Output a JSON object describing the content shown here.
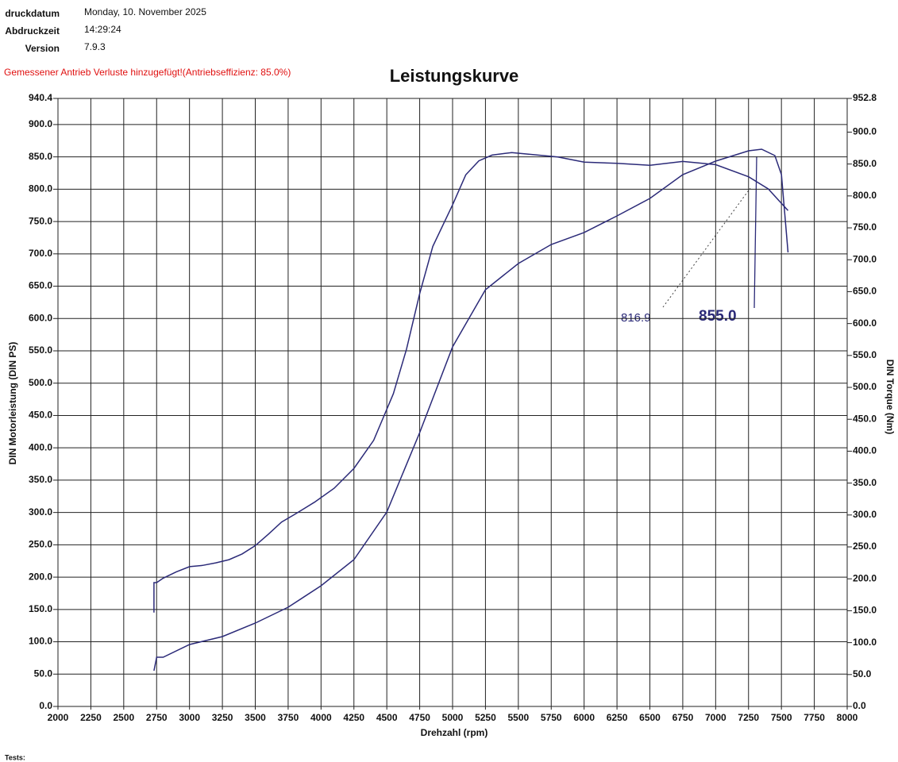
{
  "header": {
    "rows": [
      {
        "label": "druckdatum",
        "value": "Monday, 10. November 2025"
      },
      {
        "label": "Abdruckzeit",
        "value": "14:29:24"
      },
      {
        "label": "Version",
        "value": "7.9.3"
      }
    ]
  },
  "chart_data": {
    "type": "line",
    "title": "Leistungskurve",
    "note": "Gemessener Antrieb Verluste hinzugefügt!(Antriebseffizienz: 85.0%)",
    "x_label": "Drehzahl (rpm)",
    "y_label": "DIN Motorleistung (DIN PS)",
    "y2_label": "DIN Torque (Nm)",
    "xlim": [
      2000,
      8000
    ],
    "xticks": [
      2000,
      2250,
      2500,
      2750,
      3000,
      3250,
      3500,
      3750,
      4000,
      4250,
      4500,
      4750,
      5000,
      5250,
      5500,
      5750,
      6000,
      6250,
      6500,
      6750,
      7000,
      7250,
      7500,
      7750,
      8000
    ],
    "ylim": [
      0,
      940.4
    ],
    "yticks": [
      {
        "value": 0,
        "label": "0.0"
      },
      {
        "value": 50,
        "label": "50.0"
      },
      {
        "value": 100,
        "label": "100.0"
      },
      {
        "value": 150,
        "label": "150.0"
      },
      {
        "value": 200,
        "label": "200.0"
      },
      {
        "value": 250,
        "label": "250.0"
      },
      {
        "value": 300,
        "label": "300.0"
      },
      {
        "value": 350,
        "label": "350.0"
      },
      {
        "value": 400,
        "label": "400.0"
      },
      {
        "value": 450,
        "label": "450.0"
      },
      {
        "value": 500,
        "label": "500.0"
      },
      {
        "value": 550,
        "label": "550.0"
      },
      {
        "value": 600,
        "label": "600.0"
      },
      {
        "value": 650,
        "label": "650.0"
      },
      {
        "value": 700,
        "label": "700.0"
      },
      {
        "value": 750,
        "label": "750.0"
      },
      {
        "value": 800,
        "label": "800.0"
      },
      {
        "value": 850,
        "label": "850.0"
      },
      {
        "value": 900,
        "label": "900.0"
      },
      940.4
    ],
    "y2lim": [
      0,
      952.8
    ],
    "y2ticks": [
      {
        "value": 0,
        "label": "0.0"
      },
      {
        "value": 50,
        "label": "50.0"
      },
      {
        "value": 100,
        "label": "100.0"
      },
      {
        "value": 150,
        "label": "150.0"
      },
      {
        "value": 200,
        "label": "200.0"
      },
      {
        "value": 250,
        "label": "250.0"
      },
      {
        "value": 300,
        "label": "300.0"
      },
      {
        "value": 350,
        "label": "350.0"
      },
      {
        "value": 400,
        "label": "400.0"
      },
      {
        "value": 450,
        "label": "450.0"
      },
      {
        "value": 500,
        "label": "500.0"
      },
      {
        "value": 550,
        "label": "550.0"
      },
      {
        "value": 600,
        "label": "600.0"
      },
      {
        "value": 650,
        "label": "650.0"
      },
      {
        "value": 700,
        "label": "700.0"
      },
      {
        "value": 750,
        "label": "750.0"
      },
      {
        "value": 800,
        "label": "800.0"
      },
      {
        "value": 850,
        "label": "850.0"
      },
      {
        "value": 900,
        "label": "900.0"
      },
      952.8
    ],
    "grid": true,
    "series": [
      {
        "color": "#2b2a78",
        "axis": "y2",
        "x": [
          2730,
          2730,
          2750,
          2800,
          2900,
          3000,
          3100,
          3200,
          3300,
          3400,
          3500,
          3600,
          3700,
          3800,
          3950,
          4100,
          4250,
          4400,
          4550,
          4650,
          4750,
          4850,
          5000,
          5100,
          5200,
          5300,
          5450,
          5650,
          5800,
          6000,
          6250,
          6500,
          6750,
          7000,
          7250,
          7400,
          7550
        ],
        "values": [
          147,
          194,
          194,
          201,
          211,
          219,
          221,
          225,
          230,
          239,
          252,
          270,
          289,
          301,
          320,
          342,
          373,
          417,
          490,
          560,
          647,
          721,
          786,
          833,
          855,
          864,
          868,
          864,
          861,
          853,
          851,
          848,
          854,
          849,
          830,
          811,
          777
        ]
      },
      {
        "color": "#2b2a78",
        "axis": "y",
        "x": [
          2730,
          2750,
          2800,
          3000,
          3250,
          3500,
          3750,
          4000,
          4250,
          4500,
          4750,
          5000,
          5250,
          5500,
          5750,
          6000,
          6250,
          6500,
          6750,
          7000,
          7250,
          7350,
          7450,
          7500,
          7550
        ],
        "values": [
          55.2,
          76.1,
          76.1,
          95.8,
          108,
          128.9,
          153.5,
          186.6,
          227.1,
          300.8,
          423.6,
          556.1,
          644.5,
          685.1,
          714.5,
          733,
          758.7,
          785.7,
          822.6,
          843.4,
          859.4,
          861.8,
          852,
          822.6,
          702.2
        ]
      }
    ],
    "annotations": [
      {
        "text": "816.9"
      },
      {
        "text": "855.0"
      }
    ]
  },
  "footer": {
    "text": "Tests:"
  }
}
